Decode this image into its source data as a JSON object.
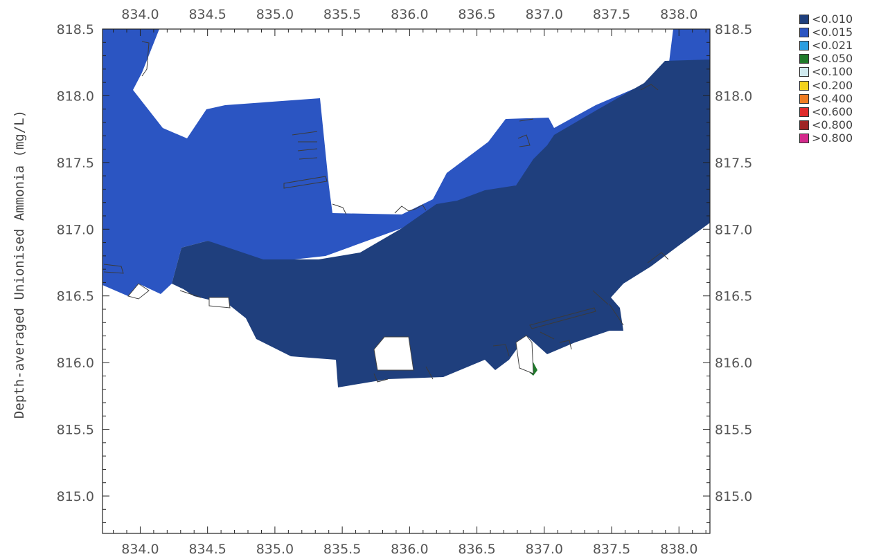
{
  "map": {
    "ylabel": "Depth-averaged Unionised Ammonia (mg/L)",
    "x_ticks": [
      "834.0",
      "834.5",
      "835.0",
      "835.5",
      "836.0",
      "836.5",
      "837.0",
      "837.5",
      "838.0"
    ],
    "x_tick_values": [
      834.0,
      834.5,
      835.0,
      835.5,
      836.0,
      836.5,
      837.0,
      837.5,
      838.0
    ],
    "y_ticks": [
      "818.5",
      "818.0",
      "817.5",
      "817.0",
      "816.5",
      "816.0",
      "815.5",
      "815.0"
    ],
    "y_tick_values": [
      818.5,
      818.0,
      817.5,
      817.0,
      816.5,
      816.0,
      815.5,
      815.0
    ],
    "xlim": [
      833.72,
      838.23
    ],
    "ylim": [
      814.72,
      818.5
    ]
  },
  "legend": [
    {
      "label": "<0.010",
      "color": "#1f3f7d"
    },
    {
      "label": "<0.015",
      "color": "#2b55c2"
    },
    {
      "label": "<0.021",
      "color": "#2a9ee0"
    },
    {
      "label": "<0.050",
      "color": "#1f7a2a"
    },
    {
      "label": "<0.100",
      "color": "#cfe9ee"
    },
    {
      "label": "<0.200",
      "color": "#f2d21a"
    },
    {
      "label": "<0.400",
      "color": "#ef7c22"
    },
    {
      "label": "<0.600",
      "color": "#e02a2a"
    },
    {
      "label": "<0.800",
      "color": "#9e2424"
    },
    {
      "label": ">0.800",
      "color": "#d42a8c"
    }
  ]
}
